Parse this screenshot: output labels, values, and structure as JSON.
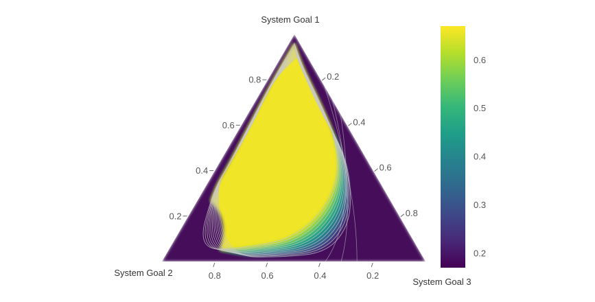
{
  "chart_data": {
    "type": "ternary-contour",
    "title": "",
    "axes": {
      "a": {
        "title": "System Goal 1",
        "ticks": [
          0.2,
          0.4,
          0.6,
          0.8
        ]
      },
      "b": {
        "title": "System Goal 2",
        "ticks": [
          0.2,
          0.4,
          0.6,
          0.8
        ]
      },
      "c": {
        "title": "System Goal 3",
        "ticks": [
          0.2,
          0.4,
          0.6,
          0.8
        ]
      }
    },
    "colorscale": "Viridis",
    "colorbar": {
      "range": [
        0.17,
        0.67
      ],
      "ticks": [
        0.2,
        0.3,
        0.4,
        0.5,
        0.6
      ]
    },
    "high_region": {
      "value_max": 0.66,
      "a_range": [
        0.05,
        0.85
      ]
    },
    "contour_lines": true
  },
  "colors": {
    "viridis": [
      "#440154",
      "#482878",
      "#3e4989",
      "#31688e",
      "#26828e",
      "#1f9e89",
      "#35b779",
      "#6ece58",
      "#b5de2b",
      "#fde725"
    ],
    "contour_line": "#c8c8c8"
  }
}
